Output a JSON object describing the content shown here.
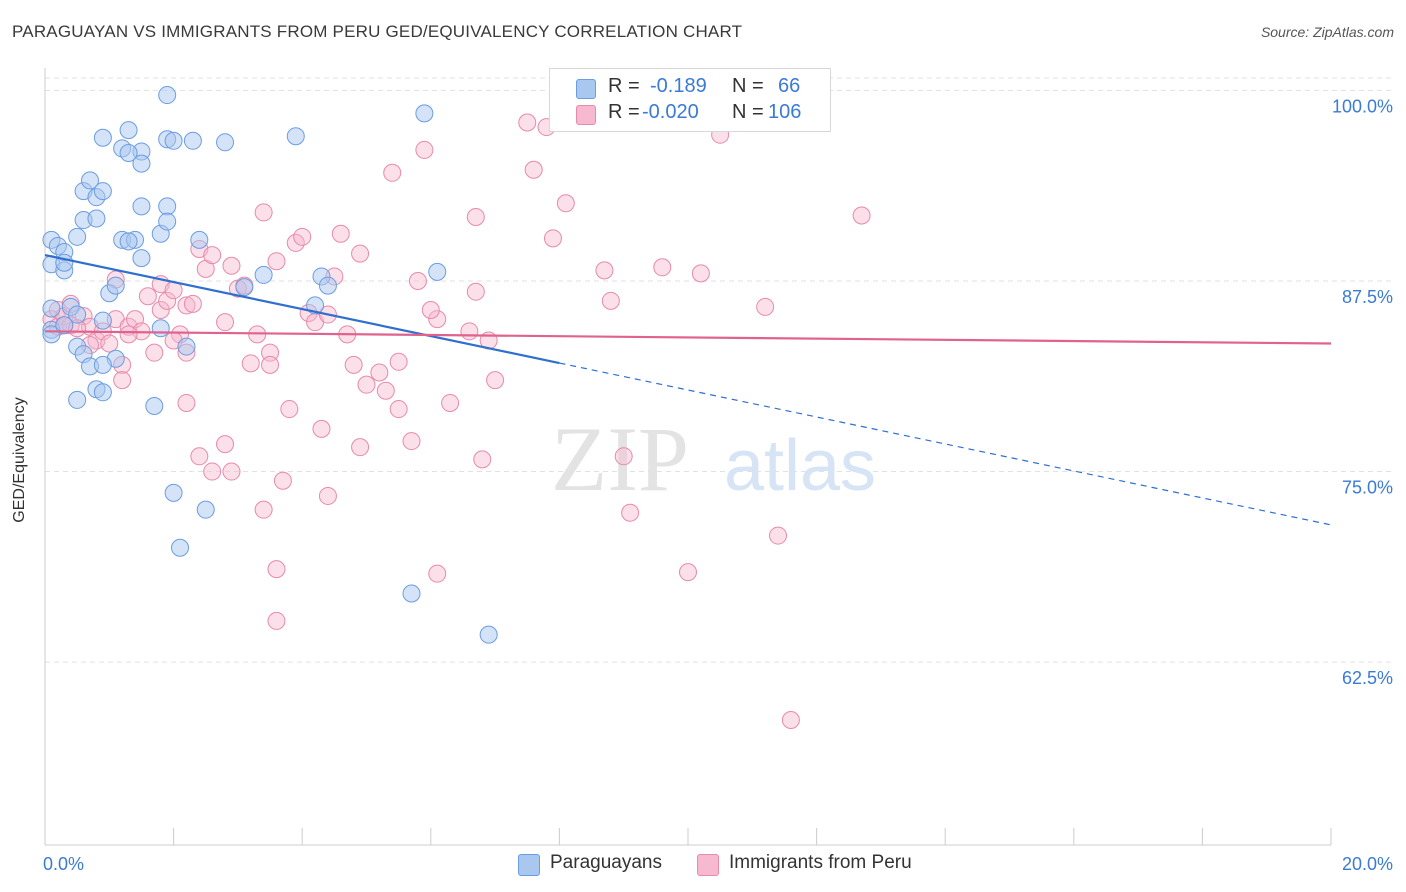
{
  "title": "PARAGUAYAN VS IMMIGRANTS FROM PERU GED/EQUIVALENCY CORRELATION CHART",
  "source": "Source: ZipAtlas.com",
  "watermark": {
    "zip": "ZIP",
    "atlas": "atlas"
  },
  "legend": {
    "rows": [
      {
        "r_label": "R =",
        "r_value": "-0.189",
        "n_label": "N =",
        "n_value": "66"
      },
      {
        "r_label": "R =",
        "r_value": "-0.020",
        "n_label": "N =",
        "n_value": "106"
      }
    ]
  },
  "bottom_legend": {
    "series1": "Paraguayans",
    "series2": "Immigrants from Peru"
  },
  "colors": {
    "blue_fill": "#a9c8f0",
    "blue_stroke": "#6b9de0",
    "blue_line": "#2f6fcf",
    "pink_fill": "#f7b9cf",
    "pink_stroke": "#e88aaa",
    "pink_line": "#e0628d",
    "axis_text": "#3a7bd5"
  },
  "chart_data": {
    "type": "scatter",
    "xlabel": "",
    "ylabel": "GED/Equivalency",
    "xlim": [
      0,
      20
    ],
    "ylim": [
      50.5,
      102
    ],
    "x_tick_labels": [
      "0.0%",
      "20.0%"
    ],
    "y_ticks": [
      62.5,
      75.0,
      87.5,
      100.0
    ],
    "y_tick_labels": [
      "62.5%",
      "75.0%",
      "87.5%",
      "100.0%"
    ],
    "grid": true,
    "series": [
      {
        "name": "Paraguayans",
        "trend": {
          "x_start": 0,
          "y_start": 89.2,
          "x_solid_end": 8.0,
          "x_end": 20,
          "y_end": 71.5
        },
        "points": [
          [
            0.1,
            90.2
          ],
          [
            0.1,
            88.6
          ],
          [
            0.2,
            89.8
          ],
          [
            0.3,
            89.4
          ],
          [
            0.3,
            88.2
          ],
          [
            0.3,
            88.7
          ],
          [
            0.1,
            85.7
          ],
          [
            0.1,
            84.3
          ],
          [
            0.1,
            84.0
          ],
          [
            0.3,
            84.6
          ],
          [
            0.4,
            85.8
          ],
          [
            0.5,
            85.3
          ],
          [
            0.5,
            83.2
          ],
          [
            0.6,
            82.7
          ],
          [
            0.7,
            81.9
          ],
          [
            0.5,
            79.7
          ],
          [
            0.8,
            80.4
          ],
          [
            0.9,
            80.2
          ],
          [
            1.1,
            82.4
          ],
          [
            0.9,
            84.9
          ],
          [
            1.0,
            86.7
          ],
          [
            1.1,
            87.2
          ],
          [
            1.2,
            90.2
          ],
          [
            1.4,
            90.2
          ],
          [
            1.3,
            90.1
          ],
          [
            1.5,
            89.0
          ],
          [
            1.8,
            90.6
          ],
          [
            1.5,
            92.4
          ],
          [
            1.9,
            92.4
          ],
          [
            1.9,
            91.4
          ],
          [
            1.5,
            96.0
          ],
          [
            1.2,
            96.2
          ],
          [
            1.3,
            95.9
          ],
          [
            1.5,
            95.2
          ],
          [
            0.9,
            96.9
          ],
          [
            1.3,
            97.4
          ],
          [
            1.9,
            96.8
          ],
          [
            2.0,
            96.7
          ],
          [
            2.3,
            96.7
          ],
          [
            2.8,
            96.6
          ],
          [
            1.9,
            99.7
          ],
          [
            3.9,
            97.0
          ],
          [
            5.9,
            98.5
          ],
          [
            0.6,
            93.4
          ],
          [
            0.7,
            94.1
          ],
          [
            0.8,
            93.0
          ],
          [
            0.9,
            93.4
          ],
          [
            0.6,
            91.5
          ],
          [
            0.8,
            91.6
          ],
          [
            0.5,
            90.4
          ],
          [
            2.4,
            90.2
          ],
          [
            3.4,
            87.9
          ],
          [
            4.3,
            87.8
          ],
          [
            4.4,
            87.2
          ],
          [
            6.1,
            88.1
          ],
          [
            4.2,
            85.9
          ],
          [
            3.1,
            87.1
          ],
          [
            2.2,
            83.2
          ],
          [
            1.8,
            84.4
          ],
          [
            1.7,
            79.3
          ],
          [
            2.0,
            73.6
          ],
          [
            2.5,
            72.5
          ],
          [
            2.1,
            70.0
          ],
          [
            5.7,
            67.0
          ],
          [
            6.9,
            64.3
          ],
          [
            0.9,
            82.0
          ]
        ]
      },
      {
        "name": "Immigrants from Peru",
        "trend": {
          "x_start": 0,
          "y_start": 84.2,
          "x_end": 20,
          "y_end": 83.4
        },
        "points": [
          [
            0.1,
            85.0
          ],
          [
            0.2,
            84.5
          ],
          [
            0.2,
            85.6
          ],
          [
            0.3,
            85.2
          ],
          [
            0.4,
            84.6
          ],
          [
            0.4,
            86.0
          ],
          [
            0.6,
            85.2
          ],
          [
            0.7,
            84.5
          ],
          [
            0.8,
            83.6
          ],
          [
            0.9,
            84.2
          ],
          [
            1.0,
            83.4
          ],
          [
            1.1,
            85.0
          ],
          [
            1.1,
            87.6
          ],
          [
            1.2,
            82.0
          ],
          [
            1.2,
            81.0
          ],
          [
            1.3,
            84.5
          ],
          [
            1.4,
            85.0
          ],
          [
            1.5,
            84.2
          ],
          [
            1.6,
            86.5
          ],
          [
            1.7,
            82.8
          ],
          [
            1.8,
            85.6
          ],
          [
            1.8,
            87.3
          ],
          [
            1.9,
            86.2
          ],
          [
            2.0,
            86.9
          ],
          [
            2.1,
            84.0
          ],
          [
            2.2,
            82.8
          ],
          [
            2.2,
            85.9
          ],
          [
            2.3,
            86.0
          ],
          [
            2.4,
            89.6
          ],
          [
            2.5,
            88.3
          ],
          [
            2.6,
            89.2
          ],
          [
            2.2,
            79.5
          ],
          [
            2.4,
            76.0
          ],
          [
            2.6,
            75.0
          ],
          [
            2.8,
            76.8
          ],
          [
            2.9,
            75.0
          ],
          [
            2.8,
            84.8
          ],
          [
            2.9,
            88.5
          ],
          [
            3.0,
            87.0
          ],
          [
            3.1,
            87.2
          ],
          [
            3.2,
            82.1
          ],
          [
            3.3,
            84.0
          ],
          [
            3.5,
            82.8
          ],
          [
            3.5,
            82.0
          ],
          [
            3.4,
            92.0
          ],
          [
            3.4,
            72.5
          ],
          [
            3.6,
            88.8
          ],
          [
            3.7,
            74.4
          ],
          [
            3.8,
            79.1
          ],
          [
            3.9,
            90.0
          ],
          [
            4.0,
            90.4
          ],
          [
            4.1,
            85.4
          ],
          [
            4.2,
            84.8
          ],
          [
            4.3,
            77.8
          ],
          [
            4.4,
            73.4
          ],
          [
            4.5,
            87.8
          ],
          [
            4.6,
            90.6
          ],
          [
            4.7,
            84.0
          ],
          [
            4.8,
            82.0
          ],
          [
            4.9,
            89.3
          ],
          [
            4.9,
            76.6
          ],
          [
            5.0,
            80.7
          ],
          [
            5.2,
            81.5
          ],
          [
            5.3,
            80.3
          ],
          [
            5.5,
            82.2
          ],
          [
            5.5,
            79.1
          ],
          [
            5.4,
            94.6
          ],
          [
            5.7,
            77.0
          ],
          [
            5.8,
            87.5
          ],
          [
            5.9,
            96.1
          ],
          [
            6.1,
            85.0
          ],
          [
            6.3,
            79.5
          ],
          [
            6.6,
            84.2
          ],
          [
            6.7,
            86.8
          ],
          [
            6.7,
            91.7
          ],
          [
            6.8,
            75.8
          ],
          [
            6.9,
            83.6
          ],
          [
            7.0,
            81.0
          ],
          [
            7.5,
            97.9
          ],
          [
            7.6,
            94.8
          ],
          [
            7.8,
            97.6
          ],
          [
            7.9,
            90.3
          ],
          [
            8.1,
            92.6
          ],
          [
            8.7,
            88.2
          ],
          [
            8.8,
            86.2
          ],
          [
            9.6,
            88.4
          ],
          [
            9.7,
            100.0
          ],
          [
            9.0,
            76.0
          ],
          [
            9.1,
            72.3
          ],
          [
            10.0,
            68.4
          ],
          [
            10.2,
            88.0
          ],
          [
            11.2,
            85.8
          ],
          [
            11.4,
            70.8
          ],
          [
            11.6,
            58.7
          ],
          [
            12.7,
            91.8
          ],
          [
            10.5,
            97.1
          ],
          [
            1.3,
            84.0
          ],
          [
            2.0,
            83.6
          ],
          [
            4.4,
            85.3
          ],
          [
            6.0,
            85.6
          ],
          [
            3.6,
            68.6
          ],
          [
            3.6,
            65.2
          ],
          [
            6.1,
            68.3
          ],
          [
            0.3,
            84.6
          ],
          [
            0.5,
            84.4
          ],
          [
            0.7,
            83.3
          ]
        ]
      }
    ]
  }
}
